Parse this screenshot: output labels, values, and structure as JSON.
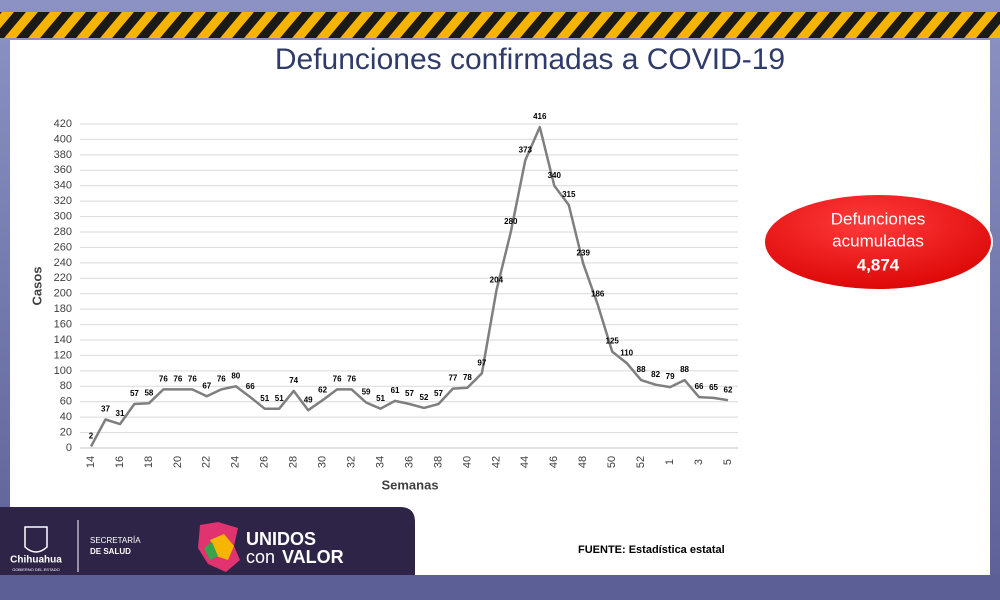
{
  "chart_data": {
    "type": "line",
    "title": "Defunciones confirmadas a COVID-19",
    "x_label": "Semanas",
    "y_label": "Casos",
    "categories": [
      "14",
      null,
      "16",
      null,
      "18",
      null,
      "20",
      null,
      "22",
      null,
      "24",
      null,
      "26",
      null,
      "28",
      null,
      "30",
      null,
      "32",
      null,
      "34",
      null,
      "36",
      null,
      "38",
      null,
      "40",
      null,
      "42",
      null,
      "44",
      null,
      "46",
      null,
      "48",
      null,
      "50",
      null,
      "52",
      null,
      "1",
      null,
      "3",
      null,
      "5"
    ],
    "values": [
      2,
      37,
      31,
      57,
      58,
      76,
      76,
      76,
      67,
      76,
      80,
      66,
      51,
      51,
      74,
      49,
      62,
      76,
      76,
      59,
      51,
      61,
      57,
      52,
      57,
      77,
      78,
      97,
      204,
      280,
      373,
      416,
      340,
      315,
      239,
      186,
      125,
      110,
      88,
      82,
      79,
      88,
      66,
      65,
      62
    ],
    "color": "#7f7f7f",
    "ylim": [
      0,
      420
    ],
    "yticks": [
      0,
      20,
      40,
      60,
      80,
      100,
      120,
      140,
      160,
      180,
      200,
      220,
      240,
      260,
      280,
      300,
      320,
      340,
      360,
      380,
      400,
      420
    ],
    "grid": true
  },
  "callout": {
    "lines": [
      "Defunciones",
      "acumuladas"
    ],
    "value": "4,874"
  },
  "source": "FUENTE: Estadística estatal",
  "footer": {
    "state": "Chihuahua",
    "state_sub": "GOBIERNO DEL ESTADO",
    "dept_1": "SECRETARÍA",
    "dept_2": "DE SALUD",
    "brand_1": "UNIDOS",
    "brand_2a": "con",
    "brand_2b": "VALOR"
  }
}
